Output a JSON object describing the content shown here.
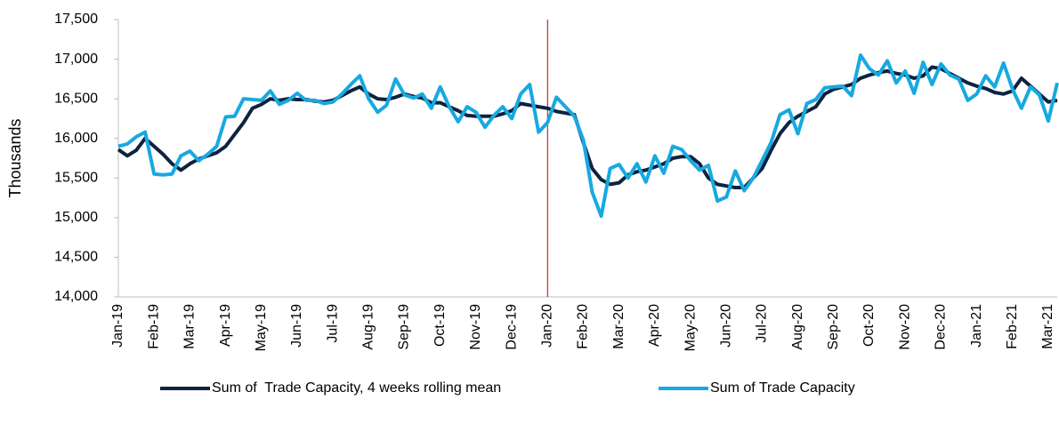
{
  "chart_data": {
    "type": "line",
    "y_label": "Thousands",
    "categories": [
      "Jan-19",
      null,
      null,
      null,
      "Feb-19",
      null,
      null,
      null,
      "Mar-19",
      null,
      null,
      null,
      "Apr-19",
      null,
      null,
      null,
      "May-19",
      null,
      null,
      null,
      "Jun-19",
      null,
      null,
      null,
      "Jul-19",
      null,
      null,
      null,
      "Aug-19",
      null,
      null,
      null,
      "Sep-19",
      null,
      null,
      null,
      "Oct-19",
      null,
      null,
      null,
      "Nov-19",
      null,
      null,
      null,
      "Dec-19",
      null,
      null,
      null,
      "Jan-20",
      null,
      null,
      null,
      "Feb-20",
      null,
      null,
      null,
      "Mar-20",
      null,
      null,
      null,
      "Apr-20",
      null,
      null,
      null,
      "May-20",
      null,
      null,
      null,
      "Jun-20",
      null,
      null,
      null,
      "Jul-20",
      null,
      null,
      null,
      "Aug-20",
      null,
      null,
      null,
      "Sep-20",
      null,
      null,
      null,
      "Oct-20",
      null,
      null,
      null,
      "Nov-20",
      null,
      null,
      null,
      "Dec-20",
      null,
      null,
      null,
      "Jan-21",
      null,
      null,
      null,
      "Feb-21",
      null,
      null,
      null,
      "Mar-21",
      null
    ],
    "series": [
      {
        "name": "Sum of  Trade Capacity, 4 weeks rolling mean",
        "color": "#0d2340",
        "values": [
          15860,
          15780,
          15850,
          16000,
          15900,
          15800,
          15680,
          15600,
          15680,
          15740,
          15780,
          15820,
          15900,
          16050,
          16200,
          16380,
          16430,
          16500,
          16480,
          16500,
          16490,
          16490,
          16470,
          16460,
          16480,
          16540,
          16600,
          16650,
          16560,
          16500,
          16490,
          16520,
          16560,
          16530,
          16510,
          16450,
          16450,
          16400,
          16350,
          16290,
          16280,
          16280,
          16280,
          16310,
          16350,
          16440,
          16420,
          16400,
          16380,
          16340,
          16320,
          16300,
          15950,
          15620,
          15480,
          15420,
          15440,
          15540,
          15580,
          15600,
          15640,
          15680,
          15750,
          15770,
          15770,
          15680,
          15500,
          15420,
          15400,
          15380,
          15380,
          15500,
          15620,
          15850,
          16060,
          16200,
          16280,
          16340,
          16400,
          16560,
          16620,
          16650,
          16680,
          16760,
          16800,
          16830,
          16850,
          16820,
          16800,
          16760,
          16790,
          16900,
          16880,
          16820,
          16760,
          16700,
          16660,
          16630,
          16580,
          16560,
          16600,
          16760,
          16660,
          16560,
          16460,
          16480
        ]
      },
      {
        "name": "Sum of Trade Capacity",
        "color": "#17a9e1",
        "values": [
          15900,
          15930,
          16020,
          16080,
          15550,
          15540,
          15550,
          15780,
          15840,
          15720,
          15800,
          15900,
          16270,
          16280,
          16500,
          16490,
          16480,
          16600,
          16430,
          16480,
          16570,
          16480,
          16480,
          16440,
          16460,
          16560,
          16680,
          16790,
          16500,
          16330,
          16420,
          16750,
          16550,
          16510,
          16560,
          16380,
          16650,
          16400,
          16210,
          16400,
          16330,
          16140,
          16290,
          16400,
          16250,
          16560,
          16680,
          16080,
          16200,
          16520,
          16400,
          16280,
          15980,
          15320,
          15020,
          15620,
          15670,
          15500,
          15680,
          15450,
          15780,
          15560,
          15900,
          15860,
          15720,
          15600,
          15660,
          15210,
          15260,
          15590,
          15340,
          15500,
          15720,
          15950,
          16300,
          16360,
          16060,
          16440,
          16490,
          16640,
          16650,
          16660,
          16540,
          17050,
          16880,
          16800,
          16980,
          16700,
          16850,
          16570,
          16960,
          16680,
          16940,
          16800,
          16750,
          16480,
          16560,
          16790,
          16650,
          16950,
          16620,
          16380,
          16650,
          16550,
          16220,
          16700
        ]
      }
    ],
    "ylim": [
      14000,
      17500
    ],
    "yticks": [
      {
        "value": 14000,
        "label": "14,000"
      },
      {
        "value": 14500,
        "label": "14,500"
      },
      {
        "value": 15000,
        "label": "15,000"
      },
      {
        "value": 15500,
        "label": "15,500"
      },
      {
        "value": 16000,
        "label": "16,000"
      },
      {
        "value": 16500,
        "label": "16,500"
      },
      {
        "value": 17000,
        "label": "17,000"
      },
      {
        "value": 17500,
        "label": "17,500"
      }
    ],
    "reference_line": {
      "x": "Jan-20",
      "color": "#c00000"
    },
    "grid": false,
    "legend": "bottom"
  }
}
